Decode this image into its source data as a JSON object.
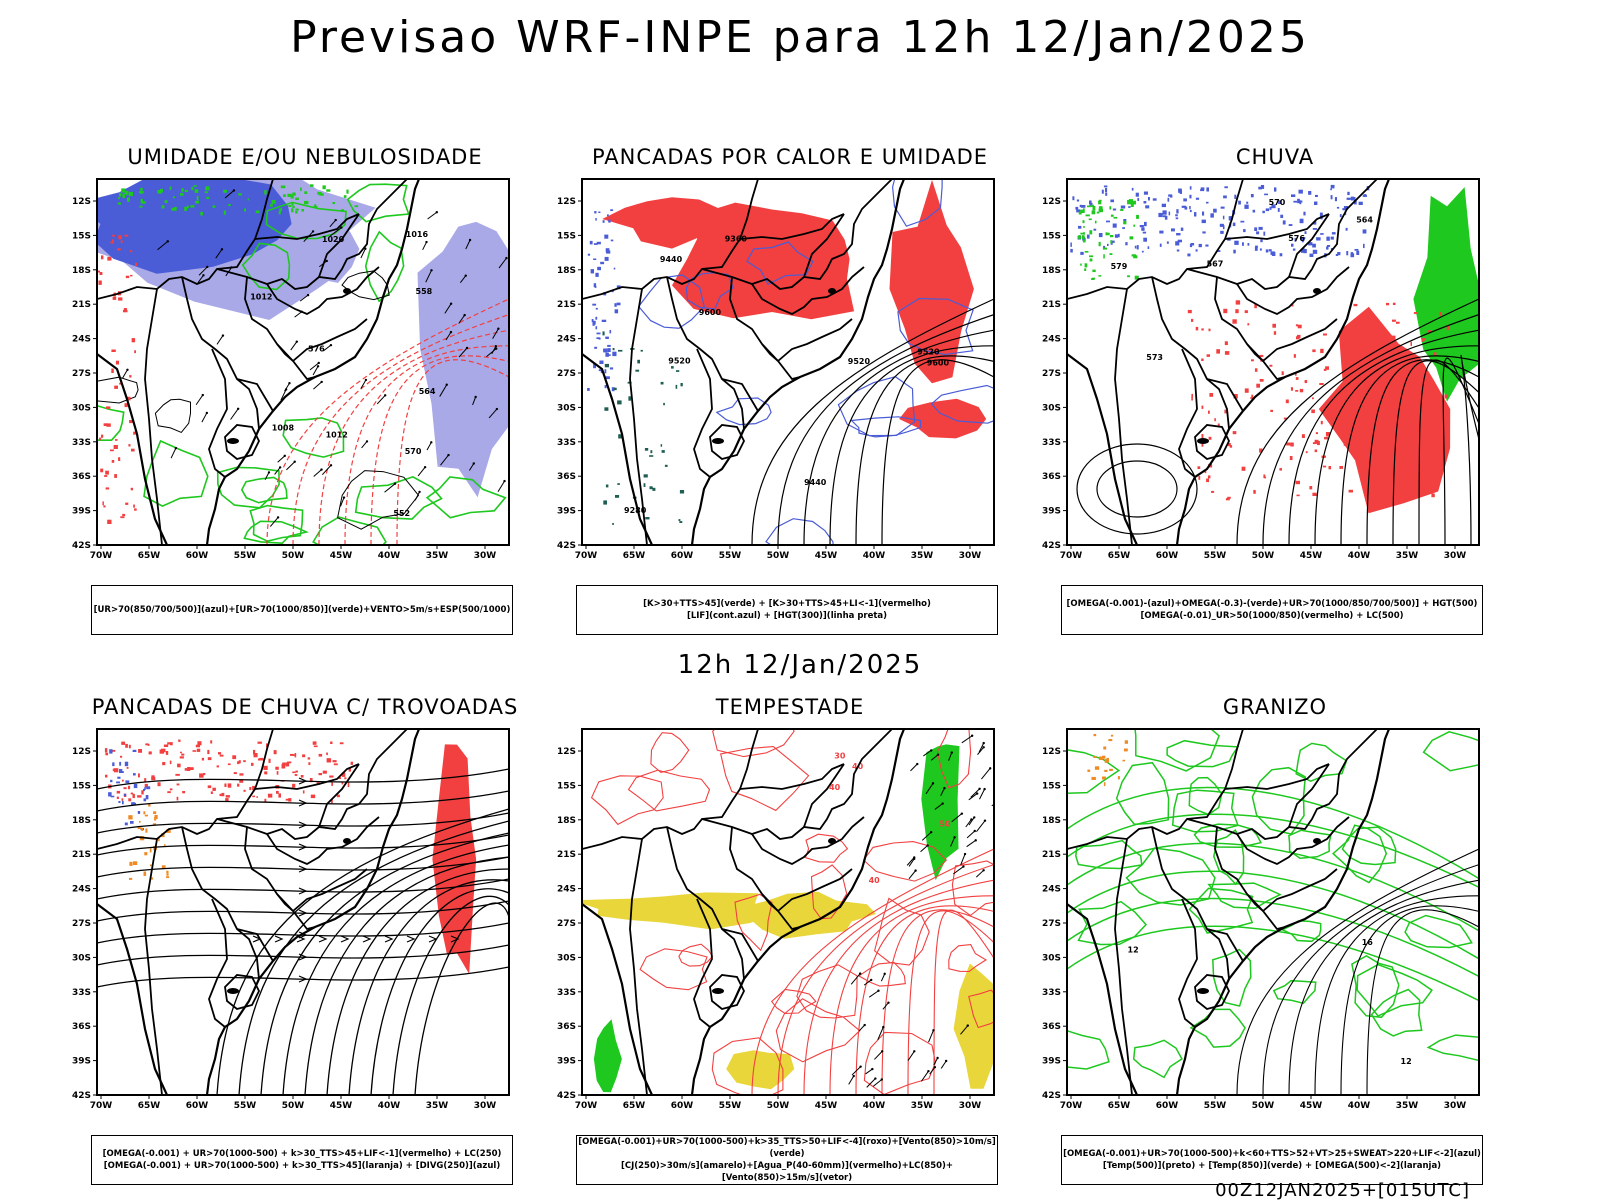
{
  "title": "Previsao WRF-INPE  para 12h 12/Jan/2025",
  "mid_label": "12h 12/Jan/2025",
  "footer": "00Z12JAN2025+[015UTC]",
  "axes": {
    "lat_labels": [
      "12S",
      "15S",
      "18S",
      "21S",
      "24S",
      "27S",
      "30S",
      "33S",
      "36S",
      "39S",
      "42S"
    ],
    "lon_labels": [
      "70W",
      "65W",
      "60W",
      "55W",
      "50W",
      "45W",
      "40W",
      "35W",
      "30W"
    ]
  },
  "colors": {
    "blue": "#4a5cd6",
    "lightblue": "#a9a9e8",
    "green": "#1ec81e",
    "red": "#f24040",
    "darkgreen": "#1f5e52",
    "yellow": "#e8d63a",
    "orange": "#f08a24"
  },
  "panels": [
    {
      "id": "umidade",
      "title": "UMIDADE E/OU NEBULOSIDADE",
      "legend": [
        "[UR>70(850/700/500)](azul)+[UR>70(1000/850)](verde)+VENTO>5m/s+ESP(500/1000)"
      ],
      "contour_labels": [
        "1012",
        "1012",
        "1008",
        "1016",
        "1020",
        "576",
        "570",
        "564",
        "558",
        "552"
      ]
    },
    {
      "id": "pancadas",
      "title": "PANCADAS POR CALOR E UMIDADE",
      "legend": [
        "[K>30+TTS>45](verde) + [K>30+TTS>45+LI<-1](vermelho)",
        "[LIF](cont.azul) + [HGT(300)](linha preta)"
      ],
      "contour_labels": [
        "9600",
        "9600",
        "9520",
        "9520",
        "9440",
        "9360",
        "9280",
        "9440",
        "9520"
      ]
    },
    {
      "id": "chuva",
      "title": "CHUVA",
      "legend": [
        "[OMEGA(-0.001)-(azul)+OMEGA(-0.3)-(verde)+UR>70(1000/850/700/500)] + HGT(500)",
        "[OMEGA(-0.01)_UR>50(1000/850)(vermelho) + LC(500)"
      ],
      "contour_labels": [
        "576",
        "573",
        "570",
        "567",
        "564",
        "579"
      ]
    },
    {
      "id": "trovoadas",
      "title": "PANCADAS DE CHUVA C/ TROVOADAS",
      "legend": [
        "[OMEGA(-0.001) + UR>70(1000-500) + k>30_TTS>45+LIF<-1](vermelho) + LC(250)",
        "[OMEGA(-0.001) + UR>70(1000-500) + k>30_TTS>45](laranja) + [DIVG(250)](azul)"
      ],
      "contour_labels": []
    },
    {
      "id": "tempestade",
      "title": "TEMPESTADE",
      "legend": [
        "[OMEGA(-0.001)+UR>70(1000-500)+k>35_TTS>50+LIF<-4](roxo)+[Vento(850)>10m/s](verde)",
        "[CJ(250)>30m/s](amarelo)+[Agua_P(40-60mm)](vermelho)+LC(850)+[Vento(850)>15m/s](vetor)"
      ],
      "contour_labels": [
        "40",
        "50",
        "40",
        "30",
        "40"
      ]
    },
    {
      "id": "granizo",
      "title": "GRANIZO",
      "legend": [
        "[OMEGA(-0.001)+UR>70(1000-500)+k<60+TTS>52+VT>25+SWEAT>220+LIF<-2](azul)",
        "[Temp(500)](preto) + [Temp(850)](verde) + [OMEGA(500)<-2](laranja)"
      ],
      "contour_labels": [
        "12",
        "12",
        "16"
      ]
    }
  ]
}
